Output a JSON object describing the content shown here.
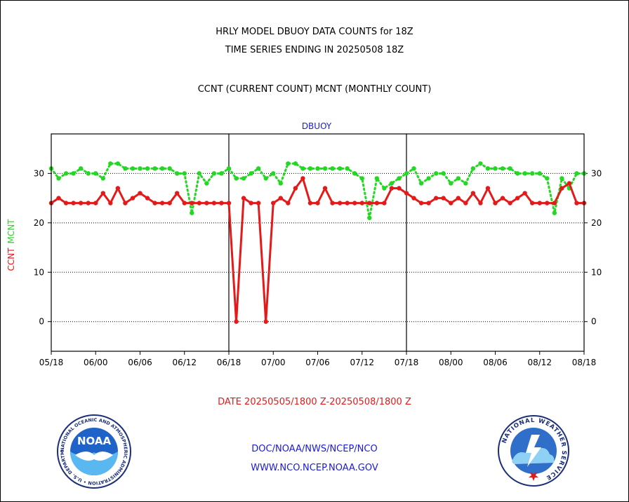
{
  "header": {
    "line1": "HRLY MODEL DBUOY DATA COUNTS for 18Z",
    "line2": "TIME SERIES ENDING IN 20250508 18Z",
    "line3": "CCNT (CURRENT COUNT) MCNT (MONTHLY COUNT)"
  },
  "footer": {
    "date_range": "DATE 20250505/1800 Z-20250508/1800 Z",
    "link1": "DOC/NOAA/NWS/NCEP/NCO",
    "link2": "WWW.NCO.NCEP.NOAA.GOV"
  },
  "logos": {
    "noaa_text": "NOAA",
    "noaa_ring": "NATIONAL OCEANIC AND ATMOSPHERIC ADMINISTRATION • U.S. DEPARTMENT OF COMMERCE •",
    "nws_ring": "NATIONAL WEATHER SERVICE"
  },
  "colors": {
    "ccnt": "#e41a1a",
    "mcnt": "#22d822",
    "title_blue": "#1a1adb",
    "text": "#000000"
  },
  "chart_data": {
    "type": "line",
    "title": "DBUOY",
    "ylabel_left_ccnt": "CCNT",
    "ylabel_left_mcnt": "MCNT",
    "xlim": [
      0,
      72
    ],
    "ylim": [
      -6,
      38
    ],
    "yticks": [
      0,
      10,
      20,
      30
    ],
    "x_tick_labels": [
      "05/18",
      "06/00",
      "06/06",
      "06/12",
      "06/18",
      "07/00",
      "07/06",
      "07/12",
      "07/18",
      "08/00",
      "08/06",
      "08/12",
      "08/18"
    ],
    "day_separators": [
      24,
      48
    ],
    "grid": true,
    "series": [
      {
        "name": "CCNT",
        "values": [
          24,
          25,
          24,
          24,
          24,
          24,
          24,
          26,
          24,
          27,
          24,
          25,
          26,
          25,
          24,
          24,
          24,
          26,
          24,
          24,
          24,
          24,
          24,
          24,
          24,
          0,
          25,
          24,
          24,
          0,
          24,
          25,
          24,
          27,
          29,
          24,
          24,
          27,
          24,
          24,
          24,
          24,
          24,
          24,
          24,
          24,
          27,
          27,
          26,
          25,
          24,
          24,
          25,
          25,
          24,
          25,
          24,
          26,
          24,
          27,
          24,
          25,
          24,
          25,
          26,
          24,
          24,
          24,
          24,
          27,
          28,
          24,
          24
        ]
      },
      {
        "name": "MCNT",
        "values": [
          31,
          29,
          30,
          30,
          31,
          30,
          30,
          29,
          32,
          32,
          31,
          31,
          31,
          31,
          31,
          31,
          31,
          30,
          30,
          22,
          30,
          28,
          30,
          30,
          31,
          29,
          29,
          30,
          31,
          29,
          30,
          28,
          32,
          32,
          31,
          31,
          31,
          31,
          31,
          31,
          31,
          30,
          29,
          21,
          29,
          27,
          28,
          29,
          30,
          31,
          28,
          29,
          30,
          30,
          28,
          29,
          28,
          31,
          32,
          31,
          31,
          31,
          31,
          30,
          30,
          30,
          30,
          29,
          22,
          29,
          27,
          30,
          30
        ]
      }
    ]
  }
}
